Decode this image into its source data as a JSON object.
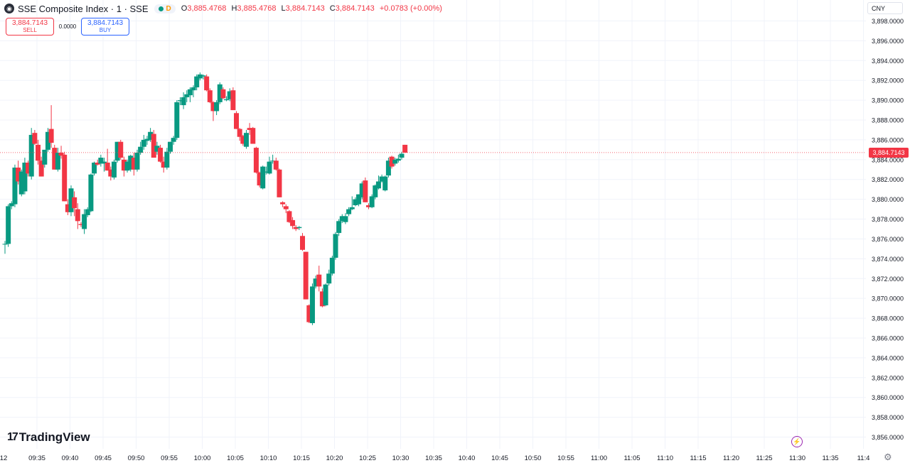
{
  "header": {
    "symbol_icon": "globe-icon",
    "symbol_title": "SSE Composite Index · 1 · SSE",
    "market_status": "D",
    "ohlc": {
      "o_label": "O",
      "o": "3,885.4768",
      "h_label": "H",
      "h": "3,885.4768",
      "l_label": "L",
      "l": "3,884.7143",
      "c_label": "C",
      "c": "3,884.7143",
      "change": "+0.0783 (+0.00%)"
    }
  },
  "trade": {
    "sell_price": "3,884.7143",
    "sell_label": "SELL",
    "spread": "0.0000",
    "buy_price": "3,884.7143",
    "buy_label": "BUY"
  },
  "currency": "CNY",
  "last_price": "3,884.7143",
  "brand": {
    "logo_mark": "17",
    "name": "TradingView"
  },
  "colors": {
    "up": "#089981",
    "down": "#f23645",
    "grid": "#f0f3fa",
    "text": "#131722"
  },
  "chart_data": {
    "type": "candlestick",
    "ylim": [
      3854,
      3899
    ],
    "y_ticks": [
      "3,856.0000",
      "3,858.0000",
      "3,860.0000",
      "3,862.0000",
      "3,864.0000",
      "3,866.0000",
      "3,868.0000",
      "3,870.0000",
      "3,872.0000",
      "3,874.0000",
      "3,876.0000",
      "3,878.0000",
      "3,880.0000",
      "3,882.0000",
      "3,884.0000",
      "3,886.0000",
      "3,888.0000",
      "3,890.0000",
      "3,892.0000",
      "3,894.0000",
      "3,896.0000",
      "3,898.0000"
    ],
    "x_ticks": [
      "12",
      "09:35",
      "09:40",
      "09:45",
      "09:50",
      "09:55",
      "10:00",
      "10:05",
      "10:10",
      "10:15",
      "10:20",
      "10:25",
      "10:30",
      "10:35",
      "10:40",
      "10:45",
      "10:50",
      "10:55",
      "11:00",
      "11:05",
      "11:10",
      "11:15",
      "11:20",
      "11:25",
      "11:30",
      "11:35",
      "11:4"
    ],
    "first_candle_time": "09:31",
    "candles": [
      [
        3875.5,
        3875.8,
        3874.5,
        3875.5
      ],
      [
        3875.5,
        3879.5,
        3875.2,
        3879.3
      ],
      [
        3879.3,
        3879.8,
        3879.0,
        3879.6
      ],
      [
        3879.5,
        3883.5,
        3879.2,
        3883.2
      ],
      [
        3883.2,
        3883.9,
        3881.5,
        3881.8
      ],
      [
        3880.5,
        3883.0,
        3880.3,
        3882.8
      ],
      [
        3880.8,
        3884.2,
        3880.5,
        3883.7
      ],
      [
        3883.7,
        3883.9,
        3882.3,
        3882.6
      ],
      [
        3882.3,
        3887.2,
        3882.0,
        3886.5
      ],
      [
        3886.7,
        3887.0,
        3885.5,
        3885.6
      ],
      [
        3885.5,
        3886.0,
        3883.5,
        3883.9
      ],
      [
        3883.9,
        3884.3,
        3882.3,
        3882.3
      ],
      [
        3883.5,
        3885.0,
        3883.2,
        3885.0
      ],
      [
        3885.0,
        3887.2,
        3884.8,
        3886.8
      ],
      [
        3887.1,
        3889.5,
        3885.2,
        3885.7
      ],
      [
        3885.2,
        3885.5,
        3883.0,
        3883.0
      ],
      [
        3883.0,
        3885.2,
        3882.8,
        3884.7
      ],
      [
        3884.7,
        3885.4,
        3884.1,
        3884.4
      ],
      [
        3884.5,
        3884.8,
        3879.8,
        3879.8
      ],
      [
        3879.5,
        3880.0,
        3878.4,
        3878.7
      ],
      [
        3878.7,
        3881.4,
        3878.3,
        3881.1
      ],
      [
        3880.2,
        3880.8,
        3878.3,
        3879.1
      ],
      [
        3879.0,
        3879.6,
        3877.0,
        3877.8
      ],
      [
        3877.5,
        3877.7,
        3877.2,
        3877.4
      ],
      [
        3877.0,
        3879.0,
        3876.5,
        3878.5
      ],
      [
        3878.4,
        3879.2,
        3878.2,
        3879.0
      ],
      [
        3878.8,
        3882.6,
        3878.7,
        3882.5
      ],
      [
        3882.6,
        3883.8,
        3882.4,
        3883.7
      ],
      [
        3883.7,
        3884.0,
        3883.4,
        3883.5
      ],
      [
        3883.6,
        3884.5,
        3883.3,
        3884.2
      ],
      [
        3883.6,
        3884.2,
        3882.8,
        3883.8
      ],
      [
        3883.7,
        3885.1,
        3882.9,
        3882.9
      ],
      [
        3883.0,
        3883.3,
        3881.9,
        3882.3
      ],
      [
        3882.2,
        3884.0,
        3882.0,
        3883.8
      ],
      [
        3883.9,
        3885.8,
        3883.7,
        3885.8
      ],
      [
        3885.8,
        3886.0,
        3884.0,
        3884.2
      ],
      [
        3884.0,
        3884.3,
        3882.3,
        3882.9
      ],
      [
        3882.9,
        3884.0,
        3882.7,
        3883.8
      ],
      [
        3883.0,
        3884.5,
        3882.8,
        3884.4
      ],
      [
        3884.2,
        3884.7,
        3882.4,
        3883.0
      ],
      [
        3883.0,
        3885.0,
        3882.8,
        3884.7
      ],
      [
        3884.7,
        3885.8,
        3884.5,
        3885.3
      ],
      [
        3885.3,
        3886.5,
        3885.0,
        3886.0
      ],
      [
        3885.9,
        3886.4,
        3885.5,
        3886.1
      ],
      [
        3886.0,
        3887.2,
        3885.8,
        3886.8
      ],
      [
        3886.6,
        3887.0,
        3884.2,
        3884.2
      ],
      [
        3884.8,
        3885.8,
        3884.5,
        3885.4
      ],
      [
        3885.2,
        3885.5,
        3883.7,
        3883.8
      ],
      [
        3883.8,
        3884.3,
        3882.7,
        3883.2
      ],
      [
        3883.2,
        3885.2,
        3883.0,
        3884.8
      ],
      [
        3884.8,
        3885.8,
        3884.6,
        3885.8
      ],
      [
        3885.8,
        3886.4,
        3885.5,
        3886.2
      ],
      [
        3886.2,
        3890.0,
        3886.0,
        3889.8
      ],
      [
        3889.9,
        3890.3,
        3889.5,
        3890.0
      ],
      [
        3889.5,
        3890.8,
        3889.1,
        3890.3
      ],
      [
        3890.3,
        3891.0,
        3889.8,
        3890.6
      ],
      [
        3890.5,
        3891.3,
        3889.8,
        3891.1
      ],
      [
        3891.0,
        3891.5,
        3890.3,
        3891.3
      ],
      [
        3891.3,
        3892.6,
        3891.0,
        3892.4
      ],
      [
        3892.2,
        3892.8,
        3892.0,
        3892.6
      ],
      [
        3892.4,
        3892.6,
        3892.1,
        3892.5
      ],
      [
        3892.4,
        3892.6,
        3890.9,
        3891.0
      ],
      [
        3891.0,
        3891.2,
        3889.7,
        3889.8
      ],
      [
        3889.8,
        3889.9,
        3887.9,
        3888.9
      ],
      [
        3888.9,
        3890.0,
        3888.5,
        3889.8
      ],
      [
        3889.8,
        3891.8,
        3889.6,
        3891.6
      ],
      [
        3891.1,
        3891.3,
        3890.1,
        3890.2
      ],
      [
        3890.0,
        3890.4,
        3889.9,
        3890.1
      ],
      [
        3890.1,
        3891.2,
        3889.9,
        3890.9
      ],
      [
        3891.0,
        3891.3,
        3889.0,
        3889.0
      ],
      [
        3888.7,
        3888.9,
        3887.1,
        3887.1
      ],
      [
        3887.1,
        3887.2,
        3885.9,
        3886.3
      ],
      [
        3886.4,
        3886.5,
        3885.4,
        3885.6
      ],
      [
        3885.3,
        3887.0,
        3885.1,
        3886.7
      ],
      [
        3887.2,
        3887.7,
        3886.5,
        3887.0
      ],
      [
        3887.2,
        3887.3,
        3885.6,
        3885.6
      ],
      [
        3885.2,
        3885.3,
        3882.6,
        3882.7
      ],
      [
        3882.7,
        3882.8,
        3881.2,
        3881.4
      ],
      [
        3881.1,
        3883.4,
        3881.0,
        3883.3
      ],
      [
        3882.7,
        3883.3,
        3882.5,
        3882.8
      ],
      [
        3882.6,
        3884.3,
        3882.5,
        3883.8
      ],
      [
        3883.9,
        3884.5,
        3883.6,
        3883.9
      ],
      [
        3883.9,
        3884.2,
        3882.9,
        3883.0
      ],
      [
        3883.0,
        3883.1,
        3880.2,
        3880.2
      ],
      [
        3879.7,
        3879.8,
        3879.2,
        3879.5
      ],
      [
        3879.3,
        3879.5,
        3878.6,
        3879.0
      ],
      [
        3878.8,
        3878.9,
        3877.6,
        3877.7
      ],
      [
        3877.9,
        3878.2,
        3877.0,
        3877.3
      ],
      [
        3877.2,
        3877.4,
        3876.8,
        3877.0
      ],
      [
        3877.1,
        3877.3,
        3876.9,
        3877.2
      ],
      [
        3876.3,
        3876.6,
        3874.8,
        3874.9
      ],
      [
        3874.7,
        3874.7,
        3869.9,
        3869.9
      ],
      [
        3869.3,
        3869.4,
        3867.5,
        3867.6
      ],
      [
        3867.5,
        3871.5,
        3867.3,
        3871.2
      ],
      [
        3871.2,
        3872.3,
        3871.0,
        3872.0
      ],
      [
        3872.4,
        3873.3,
        3870.7,
        3871.2
      ],
      [
        3870.7,
        3871.0,
        3869.1,
        3869.2
      ],
      [
        3869.3,
        3871.5,
        3869.2,
        3871.4
      ],
      [
        3871.5,
        3872.9,
        3871.3,
        3872.5
      ],
      [
        3872.5,
        3874.3,
        3872.3,
        3874.1
      ],
      [
        3874.1,
        3876.7,
        3873.9,
        3876.5
      ],
      [
        3876.6,
        3878.0,
        3876.3,
        3877.8
      ],
      [
        3877.8,
        3878.5,
        3877.6,
        3878.3
      ],
      [
        3877.7,
        3878.6,
        3877.5,
        3878.3
      ],
      [
        3878.5,
        3879.2,
        3878.3,
        3879.0
      ],
      [
        3879.0,
        3880.3,
        3878.9,
        3879.2
      ],
      [
        3879.4,
        3880.2,
        3879.3,
        3880.0
      ],
      [
        3879.5,
        3880.5,
        3879.3,
        3880.5
      ],
      [
        3880.2,
        3881.8,
        3880.0,
        3881.6
      ],
      [
        3881.9,
        3882.2,
        3879.7,
        3879.7
      ],
      [
        3879.4,
        3879.6,
        3879.0,
        3879.2
      ],
      [
        3879.2,
        3880.5,
        3879.1,
        3880.3
      ],
      [
        3880.2,
        3881.5,
        3880.0,
        3881.4
      ],
      [
        3881.1,
        3882.4,
        3881.0,
        3881.8
      ],
      [
        3881.8,
        3882.5,
        3881.7,
        3882.3
      ],
      [
        3880.9,
        3882.4,
        3880.8,
        3882.3
      ],
      [
        3882.4,
        3884.2,
        3882.2,
        3883.9
      ],
      [
        3884.3,
        3884.4,
        3883.1,
        3883.3
      ],
      [
        3883.6,
        3884.2,
        3883.4,
        3884.0
      ],
      [
        3883.9,
        3884.5,
        3883.7,
        3884.1
      ],
      [
        3884.2,
        3884.8,
        3884.0,
        3884.6
      ],
      [
        3885.5,
        3885.5,
        3884.7,
        3884.7
      ]
    ]
  }
}
